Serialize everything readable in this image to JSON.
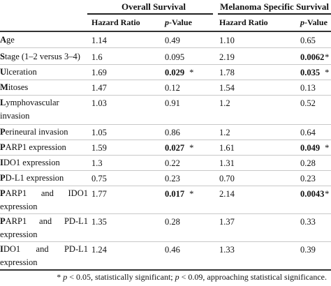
{
  "groups": {
    "overall": "Overall Survival",
    "melanoma": "Melanoma Specific Survival"
  },
  "columns": {
    "hr1": "Hazard Ratio",
    "p_italic": "p",
    "p_rest": "-Value",
    "hr2": "Hazard Ratio"
  },
  "rows": [
    {
      "label_first": "A",
      "label_rest": "ge",
      "hr1": "1.14",
      "p1": "0.49",
      "p1_mark": "",
      "hr2": "1.10",
      "p2": "0.65",
      "p2_mark": ""
    },
    {
      "label_first": "S",
      "label_rest": "tage (1–2 versus 3–4)",
      "hr1": "1.6",
      "p1": "0.095",
      "p1_mark": "",
      "hr2": "2.19",
      "p2": "0.0062",
      "p2_mark": " *"
    },
    {
      "label_first": "U",
      "label_rest": "lceration",
      "hr1": "1.69",
      "p1": "0.029",
      "p1_mark": " *",
      "hr2": "1.78",
      "p2": "0.035",
      "p2_mark": " *"
    },
    {
      "label_first": "M",
      "label_rest": "itoses",
      "hr1": "1.47",
      "p1": "0.12",
      "p1_mark": "",
      "hr2": "1.54",
      "p2": "0.13",
      "p2_mark": ""
    },
    {
      "label_first": "L",
      "label_rest": "ymphovascular invasion",
      "hr1": "1.03",
      "p1": "0.91",
      "p1_mark": "",
      "hr2": "1.2",
      "p2": "0.52",
      "p2_mark": ""
    },
    {
      "label_first": "P",
      "label_rest": "erineural invasion",
      "hr1": "1.05",
      "p1": "0.86",
      "p1_mark": "",
      "hr2": "1.2",
      "p2": "0.64",
      "p2_mark": ""
    },
    {
      "label_first": "P",
      "label_rest": "ARP1 expression",
      "hr1": "1.59",
      "p1": "0.027",
      "p1_mark": " *",
      "hr2": "1.61",
      "p2": "0.049",
      "p2_mark": " *"
    },
    {
      "label_first": "I",
      "label_rest": "DO1 expression",
      "hr1": "1.3",
      "p1": "0.22",
      "p1_mark": "",
      "hr2": "1.31",
      "p2": "0.28",
      "p2_mark": ""
    },
    {
      "label_first": "P",
      "label_rest": "D-L1 expression",
      "hr1": "0.75",
      "p1": "0.23",
      "p1_mark": "",
      "hr2": "0.70",
      "p2": "0.23",
      "p2_mark": ""
    },
    {
      "label_first": "P",
      "label_rest": "ARP1 and IDO1 expression",
      "hr1": "1.77",
      "p1": "0.017",
      "p1_mark": " *",
      "hr2": "2.14",
      "p2": "0.0043",
      "p2_mark": " *"
    },
    {
      "label_first": "P",
      "label_rest": "ARP1 and PD-L1 expression",
      "hr1": "1.35",
      "p1": "0.28",
      "p1_mark": "",
      "hr2": "1.37",
      "p2": "0.33",
      "p2_mark": ""
    },
    {
      "label_first": "I",
      "label_rest": "DO1 and PD-L1 expression",
      "hr1": "1.24",
      "p1": "0.46",
      "p1_mark": "",
      "hr2": "1.33",
      "p2": "0.39",
      "p2_mark": ""
    }
  ],
  "footnote": {
    "sym1": "*",
    "p1": "p",
    "t1": " < 0.05, statistically significant; ",
    "p2": "p",
    "t2": " < 0.09, approaching statistical significance."
  }
}
